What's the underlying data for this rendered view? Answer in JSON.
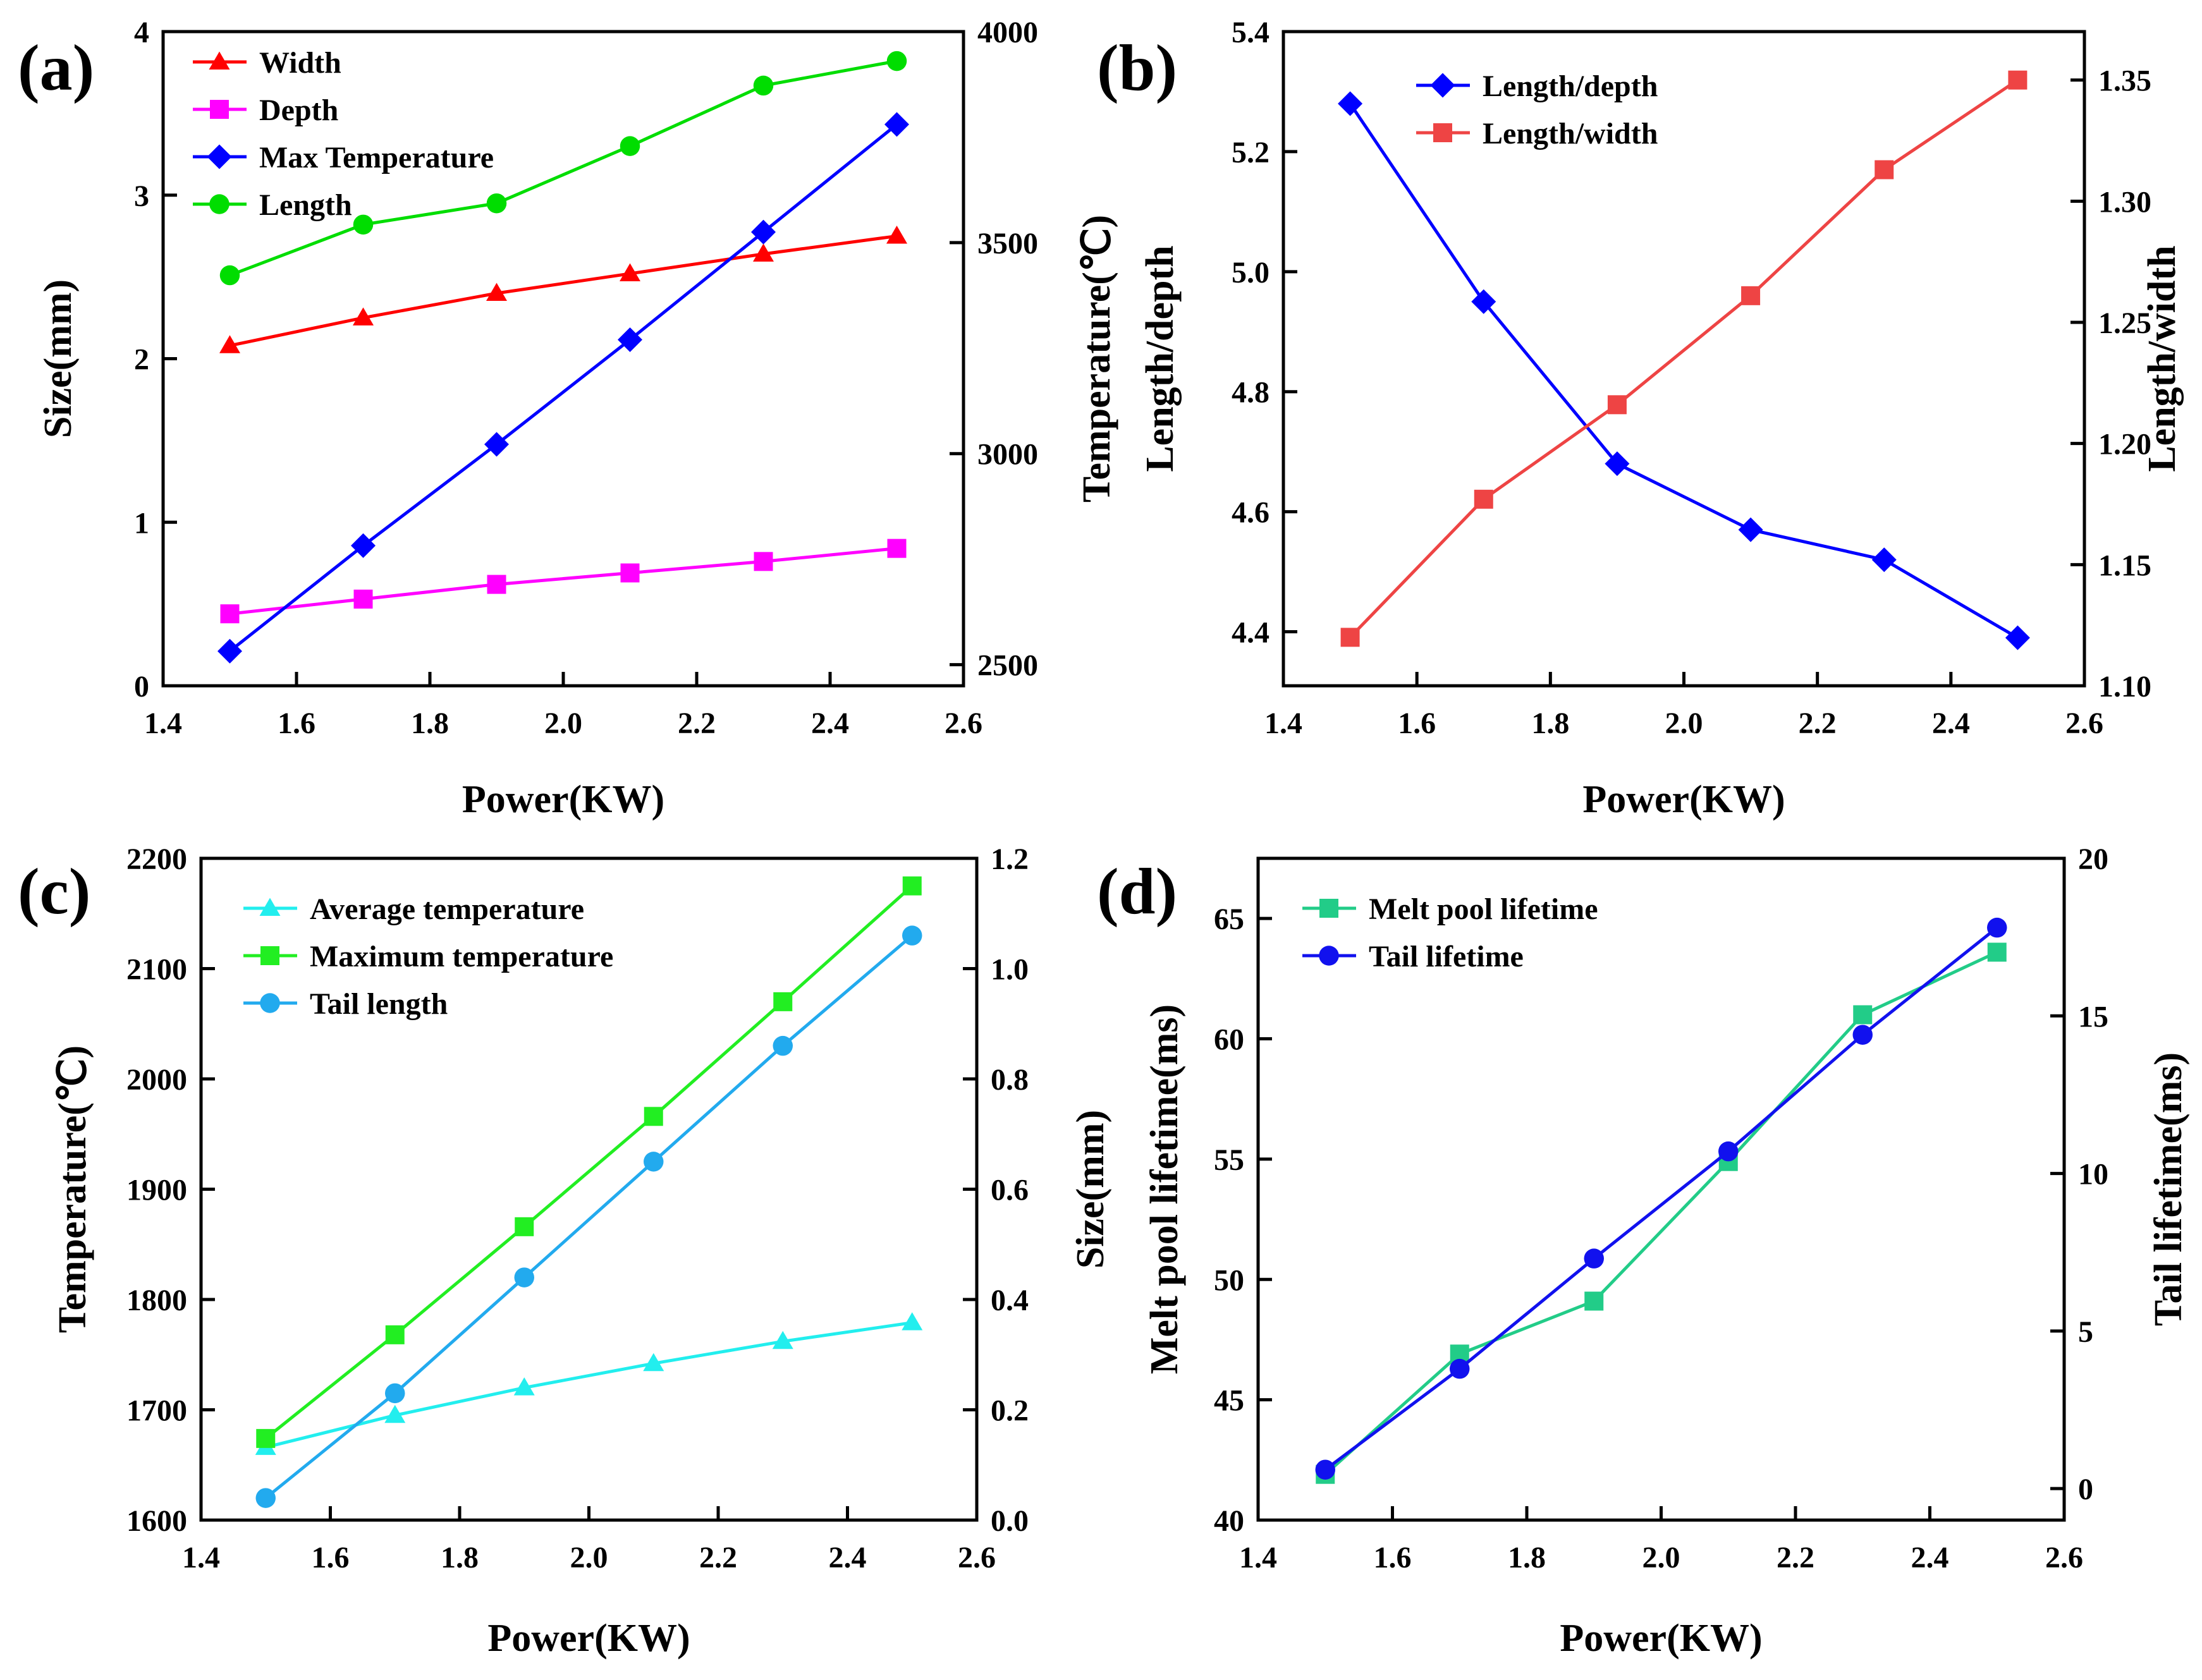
{
  "chart_data": [
    {
      "panel_label": "(a)",
      "type": "line",
      "xlabel": "Power(KW)",
      "x": [
        1.5,
        1.7,
        1.9,
        2.1,
        2.3,
        2.5
      ],
      "xlim": [
        1.4,
        2.6
      ],
      "xticks": [
        "1.4",
        "1.6",
        "1.8",
        "2.0",
        "2.2",
        "2.4",
        "2.6"
      ],
      "ylabel_left": "Size(mm)",
      "ylim_left": [
        0,
        4
      ],
      "yticks_left": [
        "0",
        "1",
        "2",
        "3",
        "4"
      ],
      "ylabel_right": "Temperature(℃)",
      "ylim_right": [
        2450,
        4000
      ],
      "yticks_right": [
        "2500",
        "3000",
        "3500",
        "4000"
      ],
      "legend_position": "top-left",
      "series": [
        {
          "name": "Width",
          "axis": "left",
          "color": "#ff0000",
          "marker": "triangle",
          "values": [
            2.08,
            2.25,
            2.4,
            2.52,
            2.64,
            2.75
          ]
        },
        {
          "name": "Depth",
          "axis": "left",
          "color": "#ff00ff",
          "marker": "square",
          "values": [
            0.44,
            0.53,
            0.62,
            0.69,
            0.76,
            0.84
          ]
        },
        {
          "name": "Max Temperature",
          "axis": "right",
          "color": "#0000ff",
          "marker": "diamond",
          "values": [
            2532,
            2782,
            3022,
            3270,
            3525,
            3780
          ]
        },
        {
          "name": "Length",
          "axis": "left",
          "color": "#00dd00",
          "marker": "circle",
          "values": [
            2.51,
            2.82,
            2.95,
            3.3,
            3.67,
            3.82
          ]
        }
      ]
    },
    {
      "panel_label": "(b)",
      "type": "line",
      "xlabel": "Power(KW)",
      "x": [
        1.5,
        1.7,
        1.9,
        2.1,
        2.3,
        2.5
      ],
      "xlim": [
        1.4,
        2.6
      ],
      "xticks": [
        "1.4",
        "1.6",
        "1.8",
        "2.0",
        "2.2",
        "2.4",
        "2.6"
      ],
      "ylabel_left": "Length/depth",
      "ylim_left": [
        4.31,
        5.4
      ],
      "yticks_left": [
        "4.4",
        "4.6",
        "4.8",
        "5.0",
        "5.2",
        "5.4"
      ],
      "ylabel_right": "Length/width",
      "ylim_right": [
        1.1,
        1.37
      ],
      "yticks_right": [
        "1.10",
        "1.15",
        "1.20",
        "1.25",
        "1.30",
        "1.35"
      ],
      "legend_position": "top-center",
      "series": [
        {
          "name": "Length/depth",
          "axis": "left",
          "color": "#0000ff",
          "marker": "diamond",
          "values": [
            5.28,
            4.95,
            4.68,
            4.57,
            4.52,
            4.39
          ]
        },
        {
          "name": "Length/width",
          "axis": "right",
          "color": "#ee4444",
          "marker": "square",
          "values": [
            1.12,
            1.177,
            1.216,
            1.261,
            1.313,
            1.35
          ]
        }
      ]
    },
    {
      "panel_label": "(c)",
      "type": "line",
      "xlabel": "Power(KW)",
      "x": [
        1.5,
        1.7,
        1.9,
        2.1,
        2.3,
        2.5
      ],
      "xlim": [
        1.4,
        2.6
      ],
      "xticks": [
        "1.4",
        "1.6",
        "1.8",
        "2.0",
        "2.2",
        "2.4",
        "2.6"
      ],
      "ylabel_left": "Temperature(℃)",
      "ylim_left": [
        1600,
        2200
      ],
      "yticks_left": [
        "1600",
        "1700",
        "1800",
        "1900",
        "2000",
        "2100",
        "2200"
      ],
      "ylabel_right": "Size(mm)",
      "ylim_right": [
        0,
        1.2
      ],
      "yticks_right": [
        "0.0",
        "0.2",
        "0.4",
        "0.6",
        "0.8",
        "1.0",
        "1.2"
      ],
      "legend_position": "top-left",
      "series": [
        {
          "name": "Average temperature",
          "axis": "left",
          "color": "#22eeee",
          "marker": "triangle",
          "values": [
            1666,
            1695,
            1720,
            1742,
            1762,
            1779
          ]
        },
        {
          "name": "Maximum temperature",
          "axis": "left",
          "color": "#22ee22",
          "marker": "square",
          "values": [
            1674,
            1768,
            1866,
            1966,
            2070,
            2175
          ]
        },
        {
          "name": "Tail length",
          "axis": "right",
          "color": "#22aaee",
          "marker": "circle",
          "values": [
            0.04,
            0.23,
            0.44,
            0.65,
            0.86,
            1.06
          ]
        }
      ]
    },
    {
      "panel_label": "(d)",
      "type": "line",
      "xlabel": "Power(KW)",
      "x": [
        1.5,
        1.7,
        1.9,
        2.1,
        2.3,
        2.5
      ],
      "xlim": [
        1.4,
        2.6
      ],
      "xticks": [
        "1.4",
        "1.6",
        "1.8",
        "2.0",
        "2.2",
        "2.4",
        "2.6"
      ],
      "ylabel_left": "Melt pool lifetime(ms)",
      "ylim_left": [
        40,
        67.5
      ],
      "yticks_left": [
        "40",
        "45",
        "50",
        "55",
        "60",
        "65"
      ],
      "ylabel_right": "Tail lifetime(ms)",
      "ylim_right": [
        -1,
        20
      ],
      "yticks_right": [
        "0",
        "5",
        "10",
        "15",
        "20"
      ],
      "legend_position": "top-left",
      "series": [
        {
          "name": "Melt pool lifetime",
          "axis": "left",
          "color": "#22cc88",
          "marker": "square",
          "values": [
            41.9,
            46.9,
            49.1,
            54.9,
            61.0,
            63.6
          ]
        },
        {
          "name": "Tail lifetime",
          "axis": "right",
          "color": "#1111ee",
          "marker": "circle",
          "values": [
            0.6,
            3.8,
            7.3,
            10.7,
            14.4,
            17.8
          ]
        }
      ]
    }
  ]
}
